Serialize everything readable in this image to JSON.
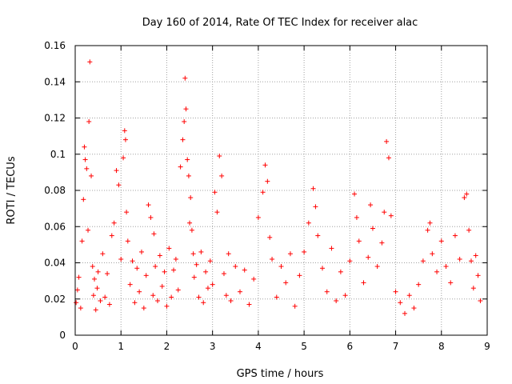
{
  "chart_data": {
    "type": "scatter",
    "title": "Day 160 of 2014, Rate Of TEC Index for receiver alac",
    "xlabel": "GPS time / hours",
    "ylabel": "ROTI / TECUs",
    "xlim": [
      0,
      9
    ],
    "ylim": [
      0,
      0.16
    ],
    "xticks": [
      0,
      1,
      2,
      3,
      4,
      5,
      6,
      7,
      8,
      9
    ],
    "xtick_labels": [
      "0",
      "1",
      "2",
      "3",
      "4",
      "5",
      "6",
      "7",
      "8",
      "9"
    ],
    "yticks": [
      0,
      0.02,
      0.04,
      0.06,
      0.08,
      0.1,
      0.12,
      0.14,
      0.16
    ],
    "ytick_labels": [
      "0",
      "0.02",
      "0.04",
      "0.06",
      "0.08",
      "0.1",
      "0.12",
      "0.14",
      "0.16"
    ],
    "grid": true,
    "marker": "+",
    "marker_color": "#ff0000",
    "series": [
      {
        "name": "ROTI",
        "x": [
          0.02,
          0.05,
          0.08,
          0.12,
          0.15,
          0.18,
          0.2,
          0.22,
          0.25,
          0.28,
          0.3,
          0.32,
          0.35,
          0.38,
          0.4,
          0.42,
          0.45,
          0.48,
          0.5,
          0.55,
          0.6,
          0.65,
          0.7,
          0.75,
          0.8,
          0.85,
          0.9,
          0.95,
          1.0,
          1.05,
          1.08,
          1.1,
          1.12,
          1.15,
          1.2,
          1.25,
          1.3,
          1.35,
          1.4,
          1.45,
          1.5,
          1.55,
          1.6,
          1.65,
          1.7,
          1.72,
          1.75,
          1.8,
          1.85,
          1.9,
          1.95,
          2.0,
          2.05,
          2.1,
          2.15,
          2.2,
          2.25,
          2.3,
          2.35,
          2.38,
          2.4,
          2.42,
          2.45,
          2.48,
          2.5,
          2.52,
          2.55,
          2.58,
          2.6,
          2.65,
          2.7,
          2.75,
          2.8,
          2.85,
          2.9,
          2.95,
          3.0,
          3.05,
          3.1,
          3.15,
          3.2,
          3.25,
          3.3,
          3.35,
          3.4,
          3.5,
          3.6,
          3.7,
          3.8,
          3.9,
          4.0,
          4.1,
          4.15,
          4.2,
          4.25,
          4.3,
          4.4,
          4.5,
          4.6,
          4.7,
          4.8,
          4.9,
          5.0,
          5.1,
          5.2,
          5.25,
          5.3,
          5.4,
          5.5,
          5.6,
          5.7,
          5.8,
          5.9,
          6.0,
          6.1,
          6.15,
          6.2,
          6.3,
          6.4,
          6.45,
          6.5,
          6.6,
          6.7,
          6.75,
          6.8,
          6.85,
          6.9,
          7.0,
          7.1,
          7.2,
          7.3,
          7.4,
          7.5,
          7.6,
          7.7,
          7.75,
          7.8,
          7.9,
          8.0,
          8.1,
          8.2,
          8.3,
          8.4,
          8.5,
          8.55,
          8.6,
          8.65,
          8.7,
          8.75,
          8.8,
          8.85
        ],
        "y": [
          0.018,
          0.025,
          0.032,
          0.015,
          0.052,
          0.075,
          0.104,
          0.097,
          0.092,
          0.058,
          0.118,
          0.151,
          0.088,
          0.038,
          0.022,
          0.031,
          0.014,
          0.026,
          0.035,
          0.019,
          0.045,
          0.021,
          0.034,
          0.017,
          0.055,
          0.062,
          0.091,
          0.083,
          0.042,
          0.098,
          0.113,
          0.108,
          0.068,
          0.052,
          0.028,
          0.041,
          0.018,
          0.037,
          0.024,
          0.046,
          0.015,
          0.033,
          0.072,
          0.065,
          0.022,
          0.056,
          0.038,
          0.019,
          0.044,
          0.027,
          0.035,
          0.016,
          0.048,
          0.021,
          0.036,
          0.042,
          0.025,
          0.093,
          0.108,
          0.118,
          0.142,
          0.125,
          0.097,
          0.088,
          0.062,
          0.076,
          0.058,
          0.045,
          0.032,
          0.039,
          0.021,
          0.046,
          0.018,
          0.035,
          0.026,
          0.041,
          0.028,
          0.079,
          0.068,
          0.099,
          0.088,
          0.034,
          0.022,
          0.045,
          0.019,
          0.038,
          0.024,
          0.036,
          0.017,
          0.031,
          0.065,
          0.079,
          0.094,
          0.085,
          0.054,
          0.042,
          0.021,
          0.038,
          0.029,
          0.045,
          0.016,
          0.033,
          0.046,
          0.062,
          0.081,
          0.071,
          0.055,
          0.037,
          0.024,
          0.048,
          0.019,
          0.035,
          0.022,
          0.041,
          0.078,
          0.065,
          0.052,
          0.029,
          0.043,
          0.072,
          0.059,
          0.038,
          0.051,
          0.068,
          0.107,
          0.098,
          0.066,
          0.024,
          0.018,
          0.012,
          0.022,
          0.015,
          0.028,
          0.041,
          0.058,
          0.062,
          0.045,
          0.035,
          0.052,
          0.038,
          0.029,
          0.055,
          0.042,
          0.076,
          0.078,
          0.058,
          0.041,
          0.026,
          0.044,
          0.033,
          0.019
        ]
      }
    ]
  }
}
